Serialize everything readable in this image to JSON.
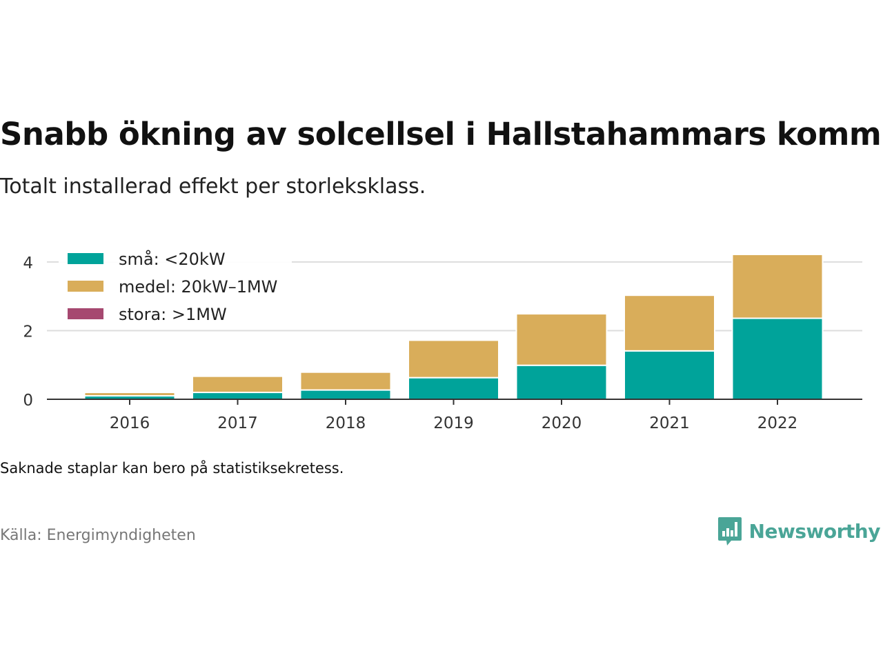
{
  "header": {
    "title": "Snabb ökning av solcellsel i Hallstahammars kommun",
    "subtitle": "Totalt installerad effekt per storleksklass."
  },
  "footer": {
    "note": "Saknade staplar kan bero på statistiksekretess.",
    "source": "Källa: Energimyndigheten",
    "brand": "Newsworthy"
  },
  "icons": {
    "brand_logo": "bar-chart-speech-bubble-icon"
  },
  "colors": {
    "small": "#00a39a",
    "medium": "#d9ad5a",
    "large": "#a64870",
    "grid": "#dddddd",
    "axis": "#333333",
    "brand": "#4aa597"
  },
  "chart_data": {
    "type": "bar",
    "stacked": true,
    "categories": [
      "2016",
      "2017",
      "2018",
      "2019",
      "2020",
      "2021",
      "2022"
    ],
    "series": [
      {
        "name": "små: <20kW",
        "color": "#00a39a",
        "values": [
          0.1,
          0.2,
          0.27,
          0.63,
          0.99,
          1.41,
          2.36
        ]
      },
      {
        "name": "medel: 20kW–1MW",
        "color": "#d9ad5a",
        "values": [
          0.1,
          0.47,
          0.52,
          1.09,
          1.5,
          1.62,
          1.86
        ]
      },
      {
        "name": "stora: >1MW",
        "color": "#a64870",
        "values": [
          0,
          0,
          0,
          0,
          0,
          0,
          0
        ]
      }
    ],
    "yticks": [
      0,
      2,
      4
    ],
    "ylim": [
      0,
      4.4
    ],
    "grid": true,
    "legend_position": "top-left",
    "xlabel": "",
    "ylabel": ""
  }
}
